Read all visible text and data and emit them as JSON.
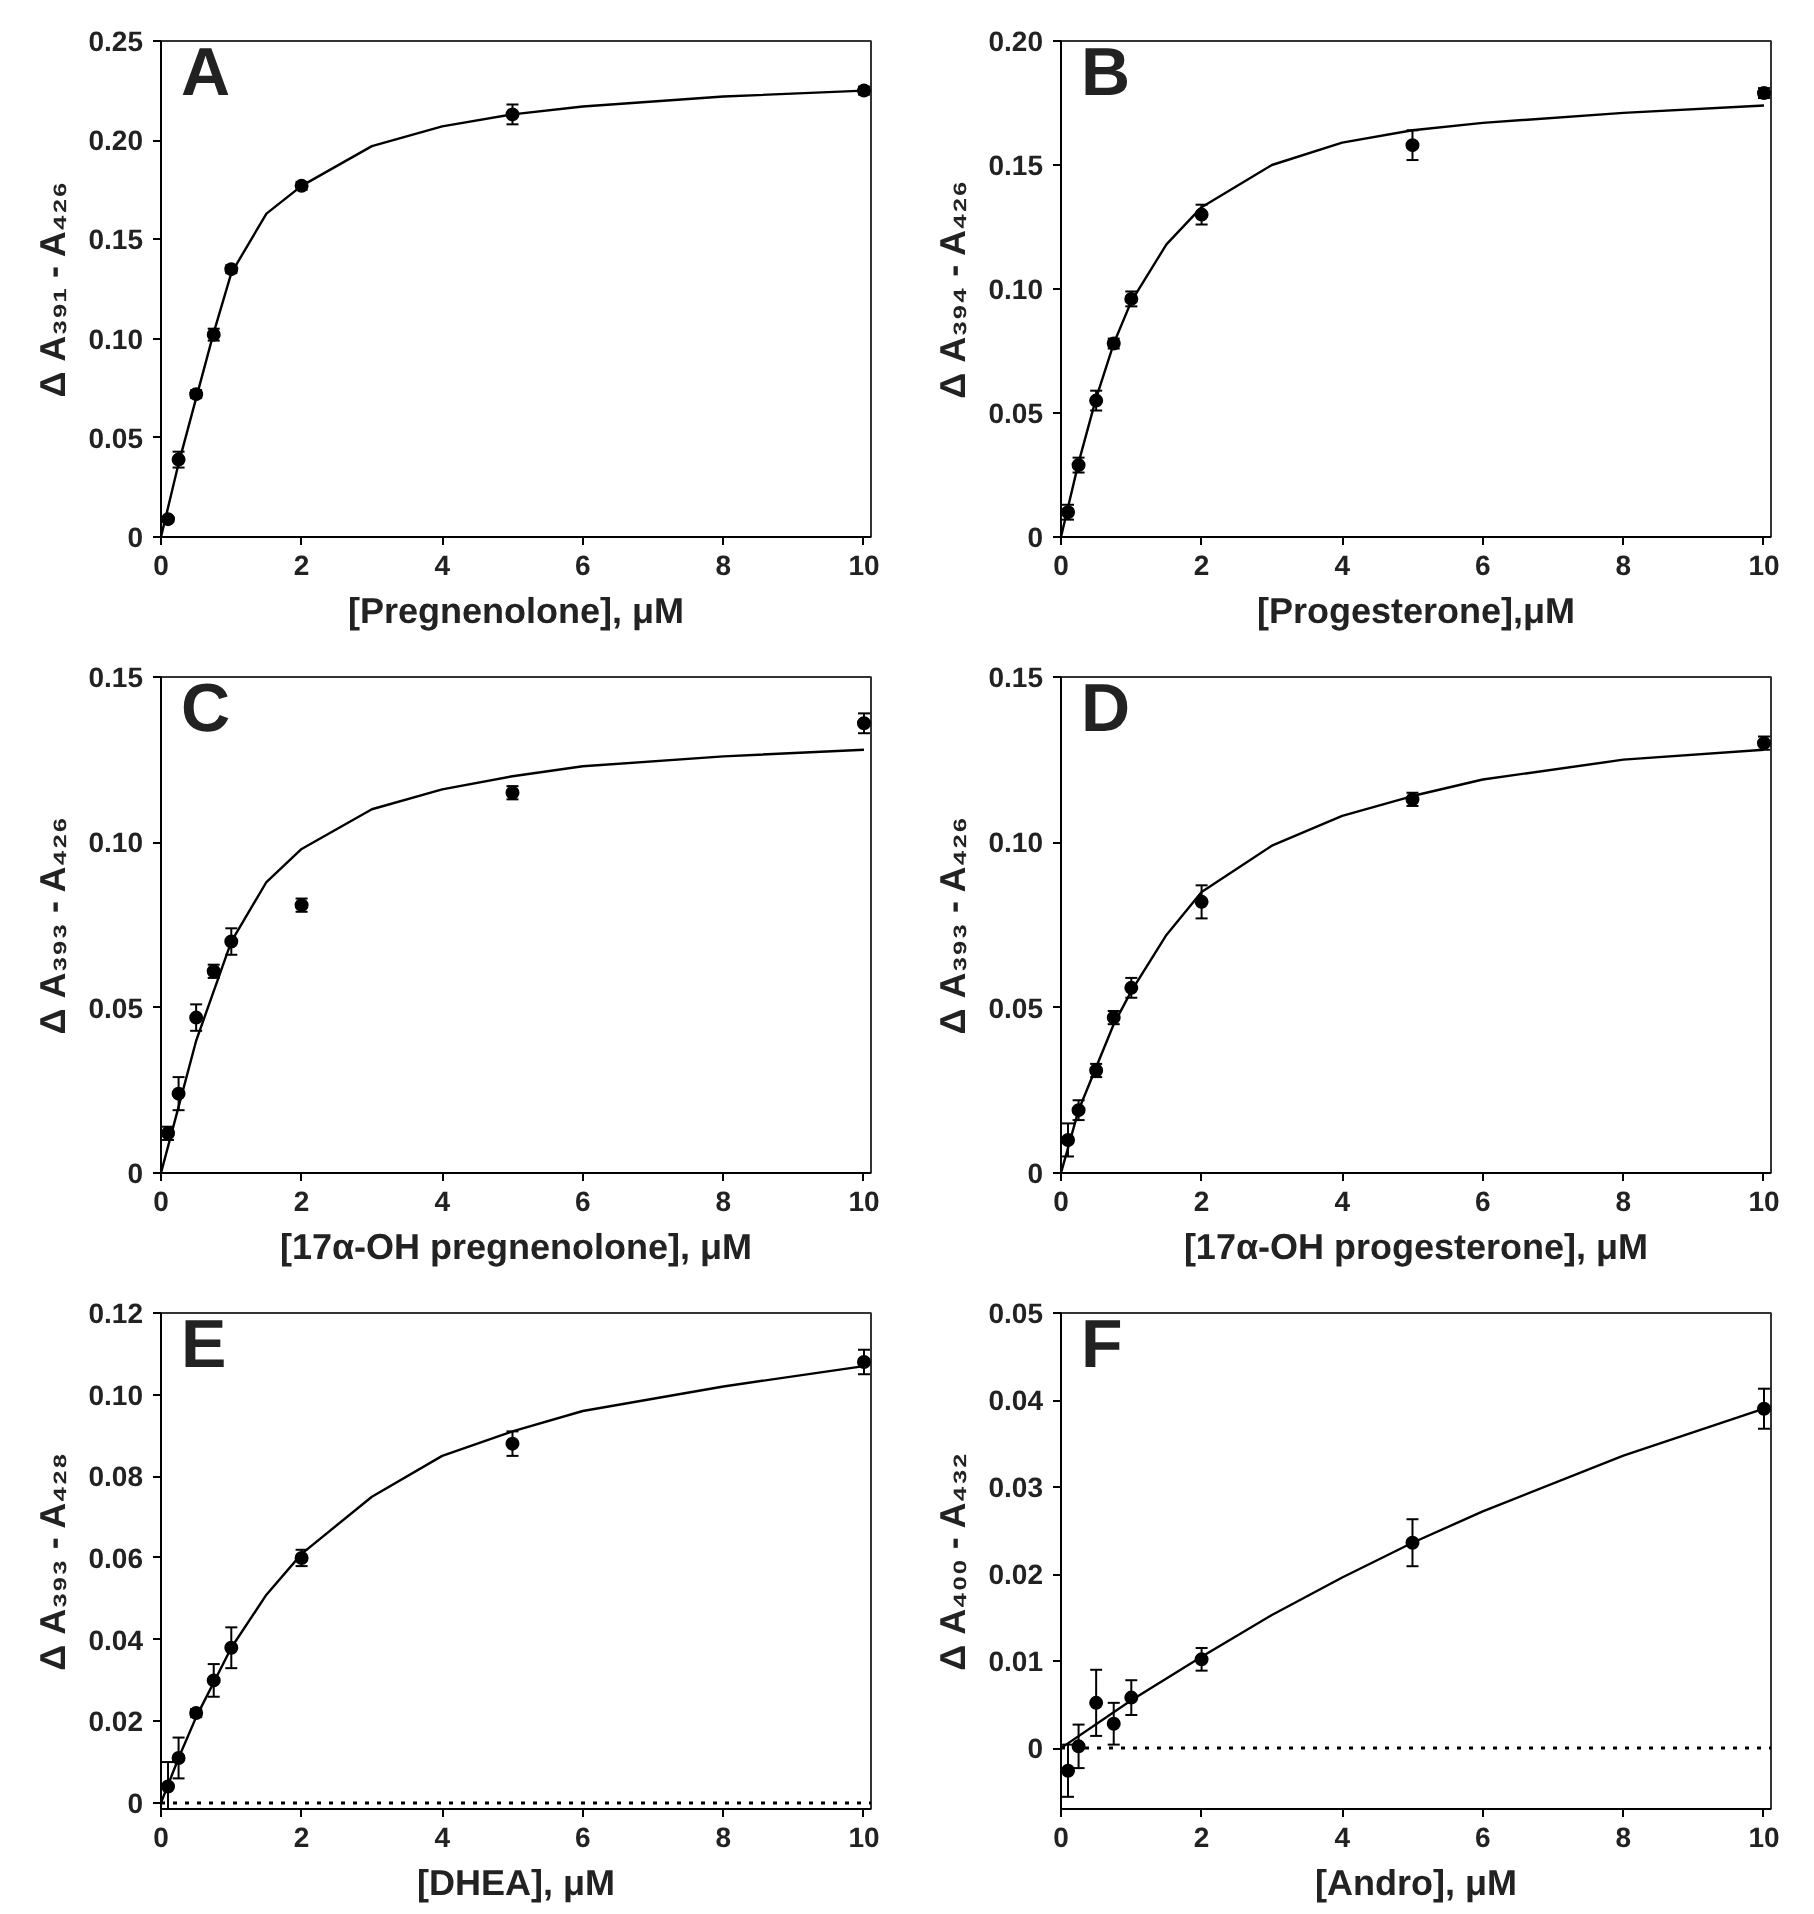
{
  "chart_data": [
    {
      "type": "scatter",
      "annotations": [
        "A"
      ],
      "xlabel": "[Pregnenolone], μM",
      "ylabel": "Δ A₃₉₁ - A₄₂₆",
      "xlim": [
        0,
        10.1
      ],
      "xticks": [
        0,
        2,
        4,
        6,
        8,
        10
      ],
      "ylim": [
        0,
        0.25
      ],
      "yticks": [
        {
          "value": 0,
          "label": "0"
        },
        {
          "value": 0.05,
          "label": "0.05"
        },
        {
          "value": 0.1,
          "label": "0.10"
        },
        {
          "value": 0.15,
          "label": "0.15"
        },
        {
          "value": 0.2,
          "label": "0.20"
        },
        {
          "value": 0.25,
          "label": "0.25"
        }
      ],
      "grid": false,
      "series": [
        {
          "marker": "circle",
          "color": "#000000",
          "x": [
            0.1,
            0.25,
            0.5,
            0.75,
            1,
            2,
            5,
            10
          ],
          "values": [
            0.009,
            0.039,
            0.072,
            0.102,
            0.135,
            0.177,
            0.213,
            0.225
          ],
          "errors": [
            0.001,
            0.004,
            0.002,
            0.003,
            0.002,
            0.002,
            0.005,
            0.002
          ]
        },
        {
          "type": "line",
          "color": "#000000",
          "x": [
            0,
            0.25,
            0.5,
            0.75,
            1,
            1.5,
            2,
            3,
            4,
            5,
            6,
            8,
            10
          ],
          "values": [
            0,
            0.037,
            0.07,
            0.103,
            0.133,
            0.163,
            0.177,
            0.197,
            0.207,
            0.213,
            0.217,
            0.222,
            0.225
          ]
        }
      ]
    },
    {
      "type": "scatter",
      "annotations": [
        "B"
      ],
      "xlabel": "[Progesterone],μM",
      "ylabel": "Δ A₃₉₄ - A₄₂₆",
      "xlim": [
        0,
        10.1
      ],
      "xticks": [
        0,
        2,
        4,
        6,
        8,
        10
      ],
      "ylim": [
        0,
        0.2
      ],
      "yticks": [
        {
          "value": 0,
          "label": "0"
        },
        {
          "value": 0.05,
          "label": "0.05"
        },
        {
          "value": 0.1,
          "label": "0.10"
        },
        {
          "value": 0.15,
          "label": "0.15"
        },
        {
          "value": 0.2,
          "label": "0.20"
        }
      ],
      "grid": false,
      "series": [
        {
          "marker": "circle",
          "color": "#000000",
          "x": [
            0.1,
            0.25,
            0.5,
            0.75,
            1,
            2,
            5,
            10
          ],
          "values": [
            0.01,
            0.029,
            0.055,
            0.078,
            0.096,
            0.13,
            0.158,
            0.179
          ],
          "errors": [
            0.003,
            0.003,
            0.004,
            0.002,
            0.003,
            0.004,
            0.006,
            0.002
          ]
        },
        {
          "type": "line",
          "color": "#000000",
          "x": [
            0,
            0.25,
            0.5,
            0.75,
            1,
            1.5,
            2,
            3,
            4,
            5,
            6,
            8,
            10
          ],
          "values": [
            0,
            0.03,
            0.056,
            0.078,
            0.095,
            0.118,
            0.133,
            0.15,
            0.159,
            0.164,
            0.167,
            0.171,
            0.174
          ]
        }
      ]
    },
    {
      "type": "scatter",
      "annotations": [
        "C"
      ],
      "xlabel": "[17α-OH pregnenolone], μM",
      "ylabel": "Δ A₃₉₃ - A₄₂₆",
      "xlim": [
        0,
        10.1
      ],
      "xticks": [
        0,
        2,
        4,
        6,
        8,
        10
      ],
      "ylim": [
        0,
        0.15
      ],
      "yticks": [
        {
          "value": 0,
          "label": "0"
        },
        {
          "value": 0.05,
          "label": "0.05"
        },
        {
          "value": 0.1,
          "label": "0.10"
        },
        {
          "value": 0.15,
          "label": "0.15"
        }
      ],
      "grid": false,
      "series": [
        {
          "marker": "circle",
          "color": "#000000",
          "x": [
            0.1,
            0.25,
            0.5,
            0.75,
            1,
            2,
            5,
            10
          ],
          "values": [
            0.012,
            0.024,
            0.047,
            0.061,
            0.07,
            0.081,
            0.115,
            0.136
          ],
          "errors": [
            0.002,
            0.005,
            0.004,
            0.002,
            0.004,
            0.002,
            0.002,
            0.003
          ]
        },
        {
          "type": "line",
          "color": "#000000",
          "x": [
            0,
            0.25,
            0.5,
            1,
            1.5,
            2,
            3,
            4,
            5,
            6,
            8,
            10
          ],
          "values": [
            0,
            0.02,
            0.04,
            0.07,
            0.088,
            0.098,
            0.11,
            0.116,
            0.12,
            0.123,
            0.126,
            0.128
          ]
        }
      ]
    },
    {
      "type": "scatter",
      "annotations": [
        "D"
      ],
      "xlabel": "[17α-OH progesterone], μM",
      "ylabel": "Δ A₃₉₃ - A₄₂₆",
      "xlim": [
        0,
        10.1
      ],
      "xticks": [
        0,
        2,
        4,
        6,
        8,
        10
      ],
      "ylim": [
        0,
        0.15
      ],
      "yticks": [
        {
          "value": 0,
          "label": "0"
        },
        {
          "value": 0.05,
          "label": "0.05"
        },
        {
          "value": 0.1,
          "label": "0.10"
        },
        {
          "value": 0.15,
          "label": "0.15"
        }
      ],
      "grid": false,
      "series": [
        {
          "marker": "circle",
          "color": "#000000",
          "x": [
            0.1,
            0.25,
            0.5,
            0.75,
            1,
            2,
            5,
            10
          ],
          "values": [
            0.01,
            0.019,
            0.031,
            0.047,
            0.056,
            0.082,
            0.113,
            0.13
          ],
          "errors": [
            0.005,
            0.003,
            0.002,
            0.002,
            0.003,
            0.005,
            0.002,
            0.002
          ]
        },
        {
          "type": "line",
          "color": "#000000",
          "x": [
            0,
            0.25,
            0.5,
            0.75,
            1,
            1.5,
            2,
            3,
            4,
            5,
            6,
            8,
            10
          ],
          "values": [
            0,
            0.019,
            0.032,
            0.045,
            0.055,
            0.072,
            0.085,
            0.099,
            0.108,
            0.114,
            0.119,
            0.125,
            0.128
          ]
        }
      ]
    },
    {
      "type": "scatter",
      "annotations": [
        "E"
      ],
      "xlabel": "[DHEA], μM",
      "ylabel": "Δ A₃₉₃ - A₄₂₈",
      "xlim": [
        0,
        10.1
      ],
      "xticks": [
        0,
        2,
        4,
        6,
        8,
        10
      ],
      "ylim": [
        -0.0015,
        0.12
      ],
      "yticks": [
        {
          "value": 0,
          "label": "0"
        },
        {
          "value": 0.02,
          "label": "0.02"
        },
        {
          "value": 0.04,
          "label": "0.04"
        },
        {
          "value": 0.06,
          "label": "0.06"
        },
        {
          "value": 0.08,
          "label": "0.08"
        },
        {
          "value": 0.1,
          "label": "0.10"
        },
        {
          "value": 0.12,
          "label": "0.12"
        }
      ],
      "grid": false,
      "ref_lines": [
        {
          "axis": "y",
          "value": 0,
          "label": null,
          "line_style": "dotted",
          "color": "#000000"
        }
      ],
      "series": [
        {
          "marker": "circle",
          "color": "#000000",
          "x": [
            0.1,
            0.25,
            0.5,
            0.75,
            1,
            2,
            5,
            10
          ],
          "values": [
            0.004,
            0.011,
            0.022,
            0.03,
            0.038,
            0.06,
            0.088,
            0.108
          ],
          "errors": [
            0.006,
            0.005,
            0.001,
            0.004,
            0.005,
            0.002,
            0.003,
            0.003
          ]
        },
        {
          "type": "line",
          "color": "#000000",
          "x": [
            0,
            0.25,
            0.5,
            1,
            1.5,
            2,
            3,
            4,
            5,
            6,
            8,
            10
          ],
          "values": [
            0,
            0.011,
            0.021,
            0.038,
            0.051,
            0.061,
            0.075,
            0.085,
            0.091,
            0.096,
            0.102,
            0.107
          ]
        }
      ]
    },
    {
      "type": "scatter",
      "annotations": [
        "F"
      ],
      "xlabel": "[Andro], μM",
      "ylabel": "Δ A₄₀₀ - A₄₃₂",
      "xlim": [
        0,
        10.1
      ],
      "xticks": [
        0,
        2,
        4,
        6,
        8,
        10
      ],
      "ylim": [
        -0.007,
        0.05
      ],
      "yticks": [
        {
          "value": 0,
          "label": "0"
        },
        {
          "value": 0.01,
          "label": "0.01"
        },
        {
          "value": 0.02,
          "label": "0.02"
        },
        {
          "value": 0.03,
          "label": "0.03"
        },
        {
          "value": 0.04,
          "label": "0.04"
        },
        {
          "value": 0.05,
          "label": "0.05"
        }
      ],
      "grid": false,
      "ref_lines": [
        {
          "axis": "y",
          "value": 0,
          "label": null,
          "line_style": "dotted",
          "color": "#000000"
        }
      ],
      "series": [
        {
          "marker": "circle",
          "color": "#000000",
          "x": [
            0.1,
            0.25,
            0.5,
            0.75,
            1,
            2,
            5,
            10
          ],
          "values": [
            -0.0026,
            0.0002,
            0.0052,
            0.0028,
            0.0058,
            0.0102,
            0.0236,
            0.039
          ],
          "errors": [
            0.003,
            0.0025,
            0.0038,
            0.0024,
            0.002,
            0.0013,
            0.0027,
            0.0023
          ]
        },
        {
          "type": "line",
          "color": "#000000",
          "x": [
            0,
            1,
            2,
            3,
            4,
            5,
            6,
            8,
            10
          ],
          "values": [
            0,
            0.0055,
            0.0105,
            0.0153,
            0.0196,
            0.0236,
            0.0272,
            0.0336,
            0.039
          ]
        }
      ]
    }
  ]
}
